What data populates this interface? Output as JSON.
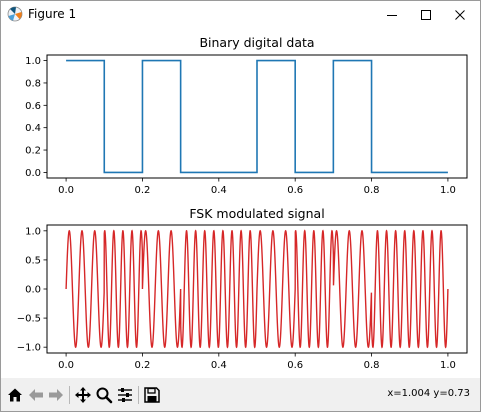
{
  "window": {
    "title": "Figure 1"
  },
  "colors": {
    "digital": "#1f77b4",
    "fsk": "#d62728",
    "titlebar": "#ffffff",
    "toolbar": "#f0f0f0"
  },
  "toolbar": {
    "buttons": [
      {
        "name": "home",
        "icon": "home-icon"
      },
      {
        "name": "back",
        "icon": "arrow-left-icon"
      },
      {
        "name": "forward",
        "icon": "arrow-right-icon"
      },
      {
        "name": "pan",
        "icon": "move-icon"
      },
      {
        "name": "zoom",
        "icon": "magnifier-icon"
      },
      {
        "name": "configure-subplots",
        "icon": "sliders-icon"
      },
      {
        "name": "save",
        "icon": "floppy-icon"
      }
    ],
    "coords": "x=1.004 y=0.73"
  },
  "chart_data": [
    {
      "type": "line",
      "title": "Binary digital data",
      "bits": [
        1,
        0,
        1,
        0,
        0,
        1,
        0,
        1,
        0,
        0
      ],
      "x": [
        0.0,
        0.1,
        0.1,
        0.2,
        0.2,
        0.3,
        0.3,
        0.5,
        0.5,
        0.6,
        0.6,
        0.7,
        0.7,
        0.8,
        0.8,
        1.0
      ],
      "y": [
        1,
        1,
        0,
        0,
        1,
        1,
        0,
        0,
        1,
        1,
        0,
        0,
        1,
        1,
        0,
        0
      ],
      "xlim": [
        -0.05,
        1.05
      ],
      "ylim": [
        -0.05,
        1.05
      ],
      "xticks": [
        0.0,
        0.2,
        0.4,
        0.6,
        0.8,
        1.0
      ],
      "xtick_labels": [
        "0.0",
        "0.2",
        "0.4",
        "0.6",
        "0.8",
        "1.0"
      ],
      "yticks": [
        0.0,
        0.2,
        0.4,
        0.6,
        0.8,
        1.0
      ],
      "ytick_labels": [
        "0.0",
        "0.2",
        "0.4",
        "0.6",
        "0.8",
        "1.0"
      ],
      "color": "#1f77b4",
      "grid": false
    },
    {
      "type": "line",
      "title": "FSK modulated signal",
      "bits": [
        1,
        0,
        1,
        0,
        0,
        1,
        0,
        1,
        0,
        0
      ],
      "bit_duration": 0.1,
      "freq_one_hz": 30,
      "freq_zero_hz": 42,
      "amplitude": 1.0,
      "xlim": [
        -0.05,
        1.05
      ],
      "ylim": [
        -1.1,
        1.1
      ],
      "xticks": [
        0.0,
        0.2,
        0.4,
        0.6,
        0.8,
        1.0
      ],
      "xtick_labels": [
        "0.0",
        "0.2",
        "0.4",
        "0.6",
        "0.8",
        "1.0"
      ],
      "yticks": [
        -1.0,
        -0.5,
        0.0,
        0.5,
        1.0
      ],
      "ytick_labels": [
        "−1.0",
        "−0.5",
        "0.0",
        "0.5",
        "1.0"
      ],
      "color": "#d62728",
      "grid": false
    }
  ]
}
